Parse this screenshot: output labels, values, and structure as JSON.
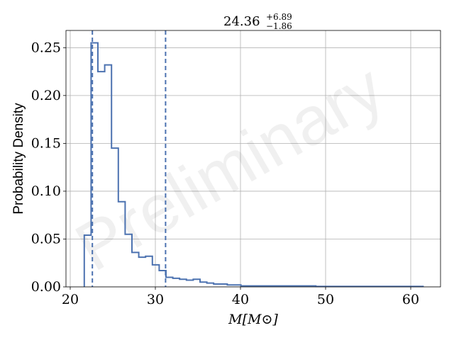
{
  "chart_data": {
    "type": "histogram",
    "title": {
      "value": "24.36",
      "upper": "+6.89",
      "lower": "−1.86"
    },
    "xlabel": "M[M⊙]",
    "ylabel": "Probability Density",
    "xlim": [
      19.5,
      63.5
    ],
    "ylim": [
      0,
      0.268
    ],
    "xticks": [
      20,
      30,
      40,
      50,
      60
    ],
    "yticks": [
      0.0,
      0.05,
      0.1,
      0.15,
      0.2,
      0.25
    ],
    "ytick_labels": [
      "0.00",
      "0.05",
      "0.10",
      "0.15",
      "0.20",
      "0.25"
    ],
    "grid": true,
    "bin_edges": [
      21.65,
      22.45,
      23.25,
      24.05,
      24.85,
      25.65,
      26.45,
      27.25,
      28.05,
      28.85,
      29.65,
      30.45,
      31.25,
      32.05,
      32.85,
      33.65,
      34.45,
      35.25,
      36.05,
      36.85,
      37.65,
      38.45,
      39.25,
      40.05,
      48.85,
      61.45
    ],
    "densities": [
      0.054,
      0.255,
      0.225,
      0.232,
      0.145,
      0.089,
      0.055,
      0.036,
      0.031,
      0.032,
      0.023,
      0.017,
      0.01,
      0.009,
      0.008,
      0.007,
      0.008,
      0.005,
      0.004,
      0.003,
      0.003,
      0.002,
      0.002,
      0.001,
      0.0005
    ],
    "vlines": [
      22.6,
      31.2
    ],
    "line_color": "#4c72b0",
    "watermark": "Preliminary"
  }
}
